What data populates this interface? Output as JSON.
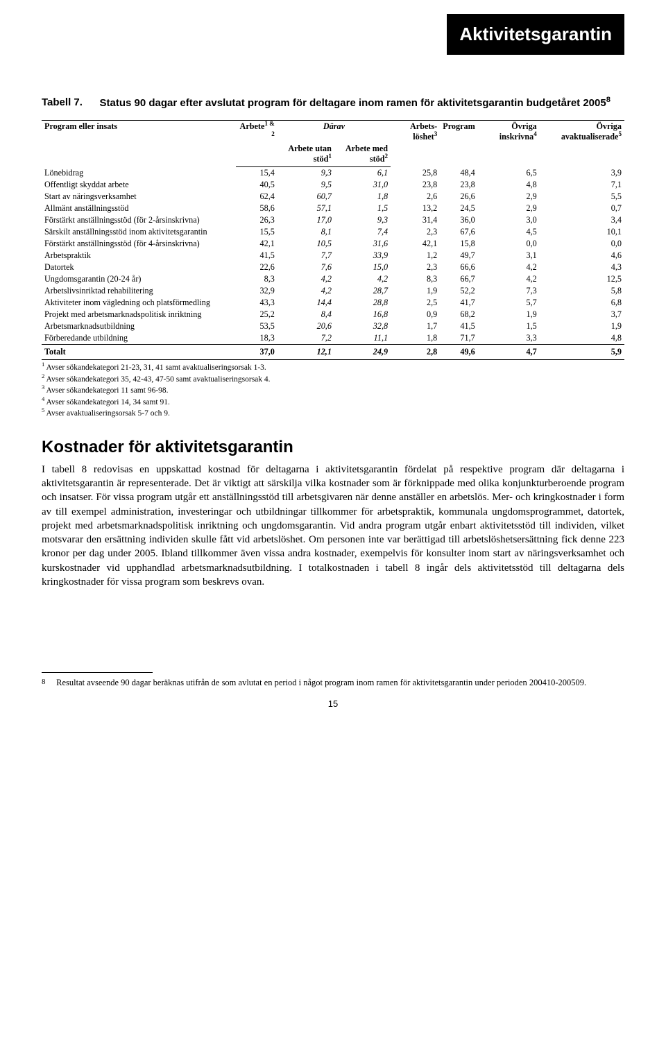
{
  "header_box": "Aktivitetsgarantin",
  "table": {
    "label": "Tabell 7.",
    "title_pre": "Status 90 dagar efter avslutat program för deltagare inom ramen för aktivitetsgarantin budgetåret 2005",
    "title_sup": "8",
    "col_program": "Program eller insats",
    "col_arbete": "Arbete",
    "col_arbete_sup": "1 & 2",
    "col_darav": "Därav",
    "col_arbete_utan": "Arbete utan stöd",
    "col_arbete_utan_sup": "1",
    "col_arbete_med": "Arbete med stöd",
    "col_arbete_med_sup": "2",
    "col_arbetsloshet": "Arbets-löshet",
    "col_arbetsloshet_sup": "3",
    "col_program2": "Program",
    "col_ovriga_inskrivna": "Övriga inskrivna",
    "col_ovriga_inskrivna_sup": "4",
    "col_ovriga_avakt": "Övriga avaktualiserade",
    "col_ovriga_avakt_sup": "5",
    "rows": [
      {
        "name": "Lönebidrag",
        "c1": "15,4",
        "c2": "9,3",
        "c3": "6,1",
        "c4": "25,8",
        "c5": "48,4",
        "c6": "6,5",
        "c7": "3,9"
      },
      {
        "name": "Offentligt skyddat arbete",
        "c1": "40,5",
        "c2": "9,5",
        "c3": "31,0",
        "c4": "23,8",
        "c5": "23,8",
        "c6": "4,8",
        "c7": "7,1"
      },
      {
        "name": "Start av näringsverksamhet",
        "c1": "62,4",
        "c2": "60,7",
        "c3": "1,8",
        "c4": "2,6",
        "c5": "26,6",
        "c6": "2,9",
        "c7": "5,5"
      },
      {
        "name": "Allmänt anställningsstöd",
        "c1": "58,6",
        "c2": "57,1",
        "c3": "1,5",
        "c4": "13,2",
        "c5": "24,5",
        "c6": "2,9",
        "c7": "0,7"
      },
      {
        "name": "Förstärkt anställningsstöd (för 2-årsinskrivna)",
        "c1": "26,3",
        "c2": "17,0",
        "c3": "9,3",
        "c4": "31,4",
        "c5": "36,0",
        "c6": "3,0",
        "c7": "3,4"
      },
      {
        "name": "Särskilt anställningsstöd inom aktivitetsgarantin",
        "c1": "15,5",
        "c2": "8,1",
        "c3": "7,4",
        "c4": "2,3",
        "c5": "67,6",
        "c6": "4,5",
        "c7": "10,1"
      },
      {
        "name": "Förstärkt anställningsstöd (för 4-årsinskrivna)",
        "c1": "42,1",
        "c2": "10,5",
        "c3": "31,6",
        "c4": "42,1",
        "c5": "15,8",
        "c6": "0,0",
        "c7": "0,0"
      },
      {
        "name": "Arbetspraktik",
        "c1": "41,5",
        "c2": "7,7",
        "c3": "33,9",
        "c4": "1,2",
        "c5": "49,7",
        "c6": "3,1",
        "c7": "4,6"
      },
      {
        "name": "Datortek",
        "c1": "22,6",
        "c2": "7,6",
        "c3": "15,0",
        "c4": "2,3",
        "c5": "66,6",
        "c6": "4,2",
        "c7": "4,3"
      },
      {
        "name": "Ungdomsgarantin (20-24 år)",
        "c1": "8,3",
        "c2": "4,2",
        "c3": "4,2",
        "c4": "8,3",
        "c5": "66,7",
        "c6": "4,2",
        "c7": "12,5"
      },
      {
        "name": "Arbetslivsinriktad rehabilitering",
        "c1": "32,9",
        "c2": "4,2",
        "c3": "28,7",
        "c4": "1,9",
        "c5": "52,2",
        "c6": "7,3",
        "c7": "5,8"
      },
      {
        "name": "Aktiviteter inom vägledning och platsförmedling",
        "c1": "43,3",
        "c2": "14,4",
        "c3": "28,8",
        "c4": "2,5",
        "c5": "41,7",
        "c6": "5,7",
        "c7": "6,8"
      },
      {
        "name": "Projekt med arbetsmarknadspolitisk inriktning",
        "c1": "25,2",
        "c2": "8,4",
        "c3": "16,8",
        "c4": "0,9",
        "c5": "68,2",
        "c6": "1,9",
        "c7": "3,7"
      },
      {
        "name": "Arbetsmarknadsutbildning",
        "c1": "53,5",
        "c2": "20,6",
        "c3": "32,8",
        "c4": "1,7",
        "c5": "41,5",
        "c6": "1,5",
        "c7": "1,9"
      },
      {
        "name": "Förberedande utbildning",
        "c1": "18,3",
        "c2": "7,2",
        "c3": "11,1",
        "c4": "1,8",
        "c5": "71,7",
        "c6": "3,3",
        "c7": "4,8"
      }
    ],
    "total": {
      "name": "Totalt",
      "c1": "37,0",
      "c2": "12,1",
      "c3": "24,9",
      "c4": "2,8",
      "c5": "49,6",
      "c6": "4,7",
      "c7": "5,9"
    }
  },
  "footnotes": {
    "f1_sup": "1",
    "f1": " Avser sökandekategori 21-23, 31, 41 samt avaktualiseringsorsak 1-3.",
    "f2_sup": "2",
    "f2": " Avser sökandekategori 35, 42-43, 47-50 samt avaktualiseringsorsak 4.",
    "f3_sup": "3",
    "f3": " Avser sökandekategori 11 samt 96-98.",
    "f4_sup": "4",
    "f4": " Avser sökandekategori 14, 34 samt 91.",
    "f5_sup": "5",
    "f5": " Avser avaktualiseringsorsak 5-7 och 9."
  },
  "section_heading": "Kostnader för aktivitetsgarantin",
  "body_text": "I tabell 8 redovisas en uppskattad kostnad för deltagarna i aktivitetsgarantin fördelat på respektive program där deltagarna i aktivitetsgarantin är representerade. Det är viktigt att särskilja vilka kostnader som är förknippade med olika konjunkturberoende program och insatser. För vissa program utgår ett anställningsstöd till arbetsgivaren när denne anställer en arbetslös. Mer- och kringkostnader i form av till exempel administration, investeringar och utbildningar tillkommer för arbetspraktik, kommunala ungdomsprogrammet, datortek, projekt med arbetsmarknadspolitisk inriktning och ungdomsgarantin. Vid andra program utgår enbart aktivitetsstöd till individen, vilket motsvarar den ersättning individen skulle fått vid arbetslöshet. Om personen inte var berättigad till arbetslöshetsersättning fick denne 223 kronor per dag under 2005. Ibland tillkommer även vissa andra kostnader, exempelvis för konsulter inom start av näringsverksamhet och kurskostnader vid upphandlad arbetsmarknadsutbildning. I totalkostnaden i tabell 8 ingår dels aktivitetsstöd till deltagarna dels kringkostnader för vissa program som beskrevs ovan.",
  "page_footnote_num": "8",
  "page_footnote_text": "Resultat avseende 90 dagar beräknas utifrån de som avlutat en period i något program inom ramen för aktivitetsgarantin under perioden 200410-200509.",
  "page_number": "15"
}
